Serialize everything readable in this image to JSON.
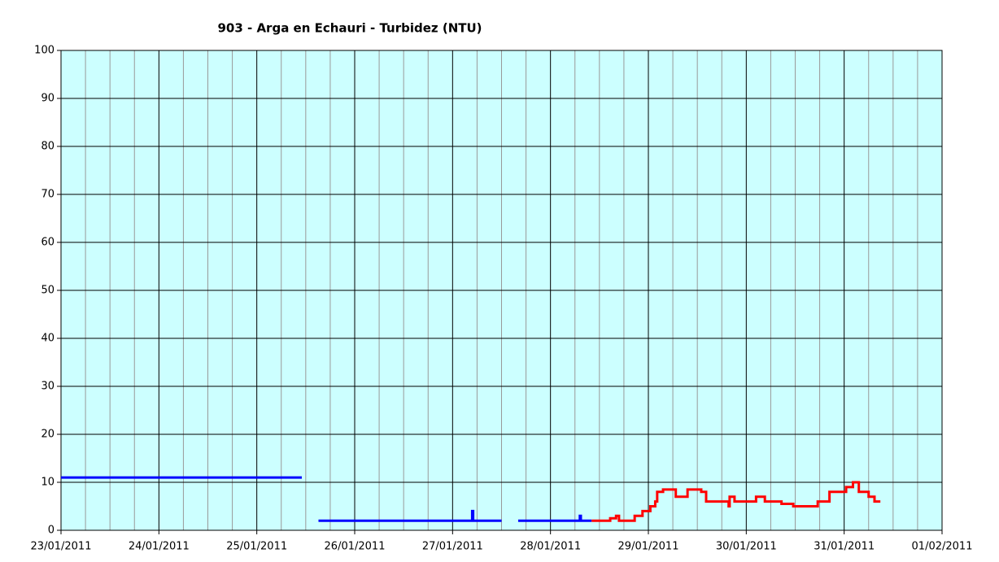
{
  "chart_data": {
    "type": "line",
    "title": "903 - Arga en Echauri - Turbidez (NTU)",
    "xlim": [
      0,
      9
    ],
    "xticks": [
      {
        "value": 0,
        "label": "23/01/2011"
      },
      {
        "value": 1,
        "label": "24/01/2011"
      },
      {
        "value": 2,
        "label": "25/01/2011"
      },
      {
        "value": 3,
        "label": "26/01/2011"
      },
      {
        "value": 4,
        "label": "27/01/2011"
      },
      {
        "value": 5,
        "label": "28/01/2011"
      },
      {
        "value": 6,
        "label": "29/01/2011"
      },
      {
        "value": 7,
        "label": "30/01/2011"
      },
      {
        "value": 8,
        "label": "31/01/2011"
      },
      {
        "value": 9,
        "label": "01/02/2011"
      }
    ],
    "xminorticks": [
      0.25,
      0.5,
      0.75,
      1.25,
      1.5,
      1.75,
      2.25,
      2.5,
      2.75,
      3.25,
      3.5,
      3.75,
      4.25,
      4.5,
      4.75,
      5.25,
      5.5,
      5.75,
      6.25,
      6.5,
      6.75,
      7.25,
      7.5,
      7.75,
      8.25,
      8.5,
      8.75
    ],
    "ylim": [
      0,
      100
    ],
    "yticks": [
      0,
      10,
      20,
      30,
      40,
      50,
      60,
      70,
      80,
      90,
      100
    ],
    "grid": true,
    "background": "#ccffff",
    "series": [
      {
        "color": "#0000ff",
        "x": [
          0,
          2.46,
          2.55,
          2.63,
          4.2,
          4.2,
          4.21,
          4.21,
          4.5,
          4.58,
          4.67,
          5.3,
          5.3,
          5.31,
          5.31,
          5.42
        ],
        "values": [
          11,
          11,
          null,
          2,
          2,
          4,
          4,
          2,
          2,
          null,
          2,
          2,
          3,
          3,
          2,
          2
        ]
      },
      {
        "color": "#ff0000",
        "x": [
          5.42,
          5.61,
          5.61,
          5.67,
          5.67,
          5.7,
          5.7,
          5.86,
          5.86,
          5.94,
          5.94,
          6.02,
          6.02,
          6.07,
          6.07,
          6.09,
          6.09,
          6.15,
          6.15,
          6.28,
          6.28,
          6.4,
          6.4,
          6.54,
          6.54,
          6.59,
          6.59,
          6.82,
          6.82,
          6.83,
          6.83,
          6.88,
          6.88,
          7.1,
          7.1,
          7.19,
          7.19,
          7.36,
          7.36,
          7.48,
          7.48,
          7.65,
          7.65,
          7.73,
          7.73,
          7.85,
          7.85,
          8.02,
          8.02,
          8.09,
          8.09,
          8.15,
          8.15,
          8.25,
          8.25,
          8.31,
          8.31,
          8.37
        ],
        "values": [
          2,
          2,
          2.5,
          2.5,
          3,
          3,
          2,
          2,
          3,
          3,
          4,
          4,
          5,
          5,
          6,
          6,
          8,
          8,
          8.5,
          8.5,
          7,
          7,
          8.5,
          8.5,
          8,
          8,
          6,
          6,
          5,
          5,
          7,
          7,
          6,
          6,
          7,
          7,
          6,
          6,
          5.5,
          5.5,
          5,
          5,
          5,
          5,
          6,
          6,
          8,
          8,
          9,
          9,
          10,
          10,
          8,
          8,
          7,
          7,
          6,
          6
        ]
      }
    ]
  }
}
